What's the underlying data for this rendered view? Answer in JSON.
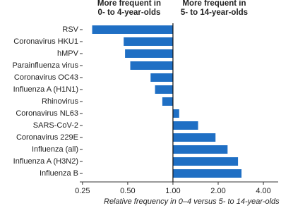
{
  "chart_data": {
    "type": "bar",
    "orientation": "horizontal",
    "log_scale": true,
    "annotations": [
      {
        "lines": [
          "More frequent in",
          "0- to 4-year-olds"
        ]
      },
      {
        "lines": [
          "More frequent in",
          "5- to 14-year-olds"
        ]
      }
    ],
    "categories": [
      "RSV",
      "Coronavirus HKU1",
      "hMPV",
      "Parainfluenza virus",
      "Coronavirus OC43",
      "Influenza A (H1N1)",
      "Rhinovirus",
      "Coronavirus NL63",
      "SARS-CoV-2",
      "Coronavirus 229E",
      "Influenza (all)",
      "Influenza A (H3N2)",
      "Influenza B"
    ],
    "values": [
      0.29,
      0.47,
      0.48,
      0.52,
      0.71,
      0.76,
      0.85,
      1.1,
      1.47,
      1.92,
      2.31,
      2.71,
      2.86
    ],
    "color": "#1f6fc4",
    "xlim": [
      0.22,
      4.6
    ],
    "xticks": [
      0.25,
      {
        "value": 0.5,
        "label": "0.50"
      },
      {
        "value": 1,
        "label": "1.00"
      },
      {
        "value": 2,
        "label": "2.00"
      },
      {
        "value": 4,
        "label": "4.00"
      }
    ],
    "x_label": "Relative frequency in 0–4 versus 5- to 14-year-olds",
    "grid": false
  }
}
